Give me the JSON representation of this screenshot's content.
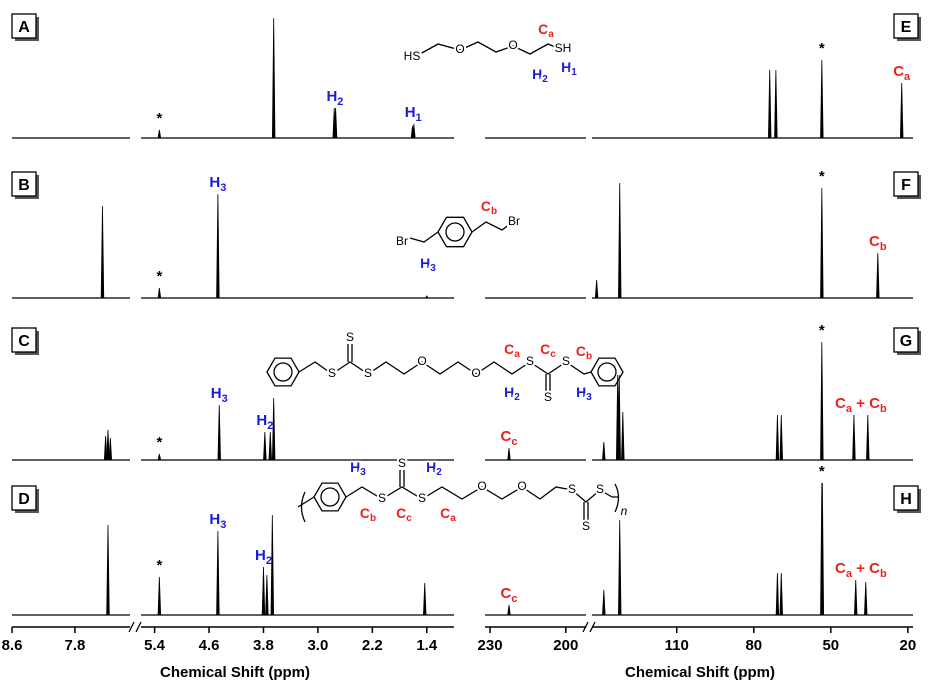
{
  "chart_data": [
    {
      "type": "spectrum",
      "xlabel": "Chemical Shift (ppm)",
      "ylim": [
        0,
        140
      ],
      "color": "#000000",
      "segments": [
        {
          "xlim": [
            8.6,
            7.1
          ],
          "xticks": [
            8.6,
            7.8
          ]
        },
        {
          "xlim": [
            5.6,
            1.0
          ],
          "xticks": [
            5.4,
            4.6,
            3.8,
            {
              "value": 3,
              "label": "3.0"
            },
            2.2,
            1.4
          ]
        }
      ],
      "spectra": [
        {
          "panel": "A",
          "peaks": [
            {
              "x": 5.33,
              "height": 8
            },
            {
              "x": 3.65,
              "height": 120
            },
            {
              "x": 2.76,
              "height": 30
            },
            {
              "x": 2.74,
              "height": 30
            },
            {
              "x": 1.61,
              "height": 12
            },
            {
              "x": 1.59,
              "height": 14
            }
          ],
          "annotations": [
            {
              "x": 5.33,
              "color": "#000000",
              "label": [
                {
                  "text": "*"
                }
              ]
            },
            {
              "x": 2.75,
              "color": "#1c1cd6",
              "label": [
                {
                  "text": "H"
                },
                {
                  "sub": "2"
                }
              ]
            },
            {
              "x": 1.6,
              "color": "#1c1cd6",
              "label": [
                {
                  "text": "H"
                },
                {
                  "sub": "1"
                }
              ]
            }
          ],
          "structure": [
            {
              "color": "#000000",
              "parts": [
                {
                  "text": "HS"
                }
              ]
            },
            {
              "color": "#000000",
              "parts": [
                {
                  "text": "O"
                }
              ]
            },
            {
              "color": "#000000",
              "parts": [
                {
                  "text": "O"
                }
              ]
            },
            {
              "color": "#000000",
              "parts": [
                {
                  "text": "SH"
                }
              ]
            },
            {
              "color": "#e8231e",
              "parts": [
                {
                  "text": "C"
                },
                {
                  "sub": "a"
                }
              ]
            },
            {
              "color": "#1c1cd6",
              "parts": [
                {
                  "text": "H"
                },
                {
                  "sub": "2"
                }
              ]
            },
            {
              "color": "#1c1cd6",
              "parts": [
                {
                  "text": "H"
                },
                {
                  "sub": "1"
                }
              ]
            }
          ]
        },
        {
          "panel": "B",
          "peaks": [
            {
              "x": 7.45,
              "height": 92
            },
            {
              "x": 5.33,
              "height": 10
            },
            {
              "x": 4.47,
              "height": 104
            },
            {
              "x": 1.4,
              "height": 2
            }
          ],
          "annotations": [
            {
              "x": 5.33,
              "color": "#000000",
              "label": [
                {
                  "text": "*"
                }
              ]
            },
            {
              "x": 4.47,
              "color": "#1c1cd6",
              "label": [
                {
                  "text": "H"
                },
                {
                  "sub": "3"
                }
              ]
            }
          ],
          "structure": [
            {
              "color": "#000000",
              "parts": [
                {
                  "text": "Br"
                }
              ]
            },
            {
              "color": "#000000",
              "parts": [
                {
                  "text": "Br"
                }
              ]
            },
            {
              "color": "#e8231e",
              "parts": [
                {
                  "text": "C"
                },
                {
                  "sub": "b"
                }
              ]
            },
            {
              "color": "#1c1cd6",
              "parts": [
                {
                  "text": "H"
                },
                {
                  "sub": "3"
                }
              ]
            }
          ]
        },
        {
          "panel": "C",
          "peaks": [
            {
              "x": 7.41,
              "height": 24
            },
            {
              "x": 7.38,
              "height": 30
            },
            {
              "x": 7.35,
              "height": 22
            },
            {
              "x": 5.33,
              "height": 6
            },
            {
              "x": 4.45,
              "height": 55
            },
            {
              "x": 3.78,
              "height": 28
            },
            {
              "x": 3.7,
              "height": 28
            },
            {
              "x": 3.65,
              "height": 62
            }
          ],
          "annotations": [
            {
              "x": 5.33,
              "color": "#000000",
              "label": [
                {
                  "text": "*"
                }
              ]
            },
            {
              "x": 4.45,
              "color": "#1c1cd6",
              "label": [
                {
                  "text": "H"
                },
                {
                  "sub": "3"
                }
              ]
            },
            {
              "x": 3.78,
              "color": "#1c1cd6",
              "label": [
                {
                  "text": "H"
                },
                {
                  "sub": "2"
                }
              ]
            }
          ],
          "structure": [
            {
              "color": "#000000",
              "parts": [
                {
                  "text": "S"
                }
              ]
            },
            {
              "color": "#000000",
              "parts": [
                {
                  "text": "S"
                }
              ]
            },
            {
              "color": "#000000",
              "parts": [
                {
                  "text": "S"
                }
              ]
            },
            {
              "color": "#000000",
              "parts": [
                {
                  "text": "S"
                }
              ]
            },
            {
              "color": "#000000",
              "parts": [
                {
                  "text": "S"
                }
              ]
            },
            {
              "color": "#000000",
              "parts": [
                {
                  "text": "S"
                }
              ]
            },
            {
              "color": "#000000",
              "parts": [
                {
                  "text": "O"
                }
              ]
            },
            {
              "color": "#000000",
              "parts": [
                {
                  "text": "O"
                }
              ]
            },
            {
              "color": "#e8231e",
              "parts": [
                {
                  "text": "C"
                },
                {
                  "sub": "a"
                }
              ]
            },
            {
              "color": "#e8231e",
              "parts": [
                {
                  "text": "C"
                },
                {
                  "sub": "c"
                }
              ]
            },
            {
              "color": "#e8231e",
              "parts": [
                {
                  "text": "C"
                },
                {
                  "sub": "b"
                }
              ]
            },
            {
              "color": "#1c1cd6",
              "parts": [
                {
                  "text": "H"
                },
                {
                  "sub": "2"
                }
              ]
            },
            {
              "color": "#1c1cd6",
              "parts": [
                {
                  "text": "H"
                },
                {
                  "sub": "3"
                }
              ]
            }
          ]
        },
        {
          "panel": "D",
          "peaks": [
            {
              "x": 7.38,
              "height": 90
            },
            {
              "x": 5.33,
              "height": 38
            },
            {
              "x": 4.47,
              "height": 84
            },
            {
              "x": 3.8,
              "height": 48
            },
            {
              "x": 3.75,
              "height": 40
            },
            {
              "x": 3.67,
              "height": 100
            },
            {
              "x": 1.43,
              "height": 32
            }
          ],
          "annotations": [
            {
              "x": 5.33,
              "color": "#000000",
              "label": [
                {
                  "text": "*"
                }
              ]
            },
            {
              "x": 4.47,
              "color": "#1c1cd6",
              "label": [
                {
                  "text": "H"
                },
                {
                  "sub": "3"
                }
              ]
            },
            {
              "x": 3.8,
              "color": "#1c1cd6",
              "label": [
                {
                  "text": "H"
                },
                {
                  "sub": "2"
                }
              ]
            }
          ],
          "structure": [
            {
              "color": "#000000",
              "parts": [
                {
                  "text": "S"
                }
              ]
            },
            {
              "color": "#000000",
              "parts": [
                {
                  "text": "S"
                }
              ]
            },
            {
              "color": "#000000",
              "parts": [
                {
                  "text": "S"
                }
              ]
            },
            {
              "color": "#000000",
              "parts": [
                {
                  "text": "S"
                }
              ]
            },
            {
              "color": "#000000",
              "parts": [
                {
                  "text": "S"
                }
              ]
            },
            {
              "color": "#000000",
              "parts": [
                {
                  "text": "S"
                }
              ]
            },
            {
              "color": "#000000",
              "parts": [
                {
                  "text": "O"
                }
              ]
            },
            {
              "color": "#000000",
              "parts": [
                {
                  "text": "O"
                }
              ]
            },
            {
              "color": "#e8231e",
              "parts": [
                {
                  "text": "C"
                },
                {
                  "sub": "b"
                }
              ]
            },
            {
              "color": "#1c1cd6",
              "parts": [
                {
                  "text": "H"
                },
                {
                  "sub": "3"
                }
              ]
            },
            {
              "color": "#e8231e",
              "parts": [
                {
                  "text": "C"
                },
                {
                  "sub": "c"
                }
              ]
            },
            {
              "color": "#e8231e",
              "parts": [
                {
                  "text": "C"
                },
                {
                  "sub": "a"
                }
              ]
            },
            {
              "color": "#1c1cd6",
              "parts": [
                {
                  "text": "H"
                },
                {
                  "sub": "2"
                }
              ]
            },
            {
              "color": "#000000",
              "parts": [
                {
                  "text": "n"
                }
              ]
            }
          ]
        }
      ]
    },
    {
      "type": "spectrum",
      "xlabel": "Chemical Shift (ppm)",
      "ylim": [
        0,
        140
      ],
      "color": "#000000",
      "segments": [
        {
          "xlim": [
            232,
            192
          ],
          "xticks": [
            230,
            200
          ]
        },
        {
          "xlim": [
            143,
            18
          ],
          "xticks": [
            110,
            80,
            50,
            20
          ]
        }
      ],
      "spectra": [
        {
          "panel": "E",
          "peaks": [
            {
              "x": 73.8,
              "height": 68
            },
            {
              "x": 71.4,
              "height": 68
            },
            {
              "x": 53.5,
              "height": 78
            },
            {
              "x": 22.4,
              "height": 55
            }
          ],
          "annotations": [
            {
              "x": 53.5,
              "color": "#000000",
              "label": [
                {
                  "text": "*"
                }
              ]
            },
            {
              "x": 22.4,
              "color": "#e8231e",
              "label": [
                {
                  "text": "C"
                },
                {
                  "sub": "a"
                }
              ]
            }
          ]
        },
        {
          "panel": "F",
          "peaks": [
            {
              "x": 141.2,
              "height": 18
            },
            {
              "x": 132.2,
              "height": 115
            },
            {
              "x": 53.5,
              "height": 110
            },
            {
              "x": 31.7,
              "height": 45
            }
          ],
          "annotations": [
            {
              "x": 53.5,
              "color": "#000000",
              "label": [
                {
                  "text": "*"
                }
              ]
            },
            {
              "x": 31.7,
              "color": "#e8231e",
              "label": [
                {
                  "text": "C"
                },
                {
                  "sub": "b"
                }
              ]
            }
          ]
        },
        {
          "panel": "G",
          "peaks": [
            {
              "x": 222.5,
              "height": 12
            },
            {
              "x": 138.4,
              "height": 18
            },
            {
              "x": 133,
              "height": 85
            },
            {
              "x": 132.4,
              "height": 85
            },
            {
              "x": 131,
              "height": 48
            },
            {
              "x": 70.8,
              "height": 45
            },
            {
              "x": 69.3,
              "height": 45
            },
            {
              "x": 53.5,
              "height": 118
            },
            {
              "x": 41,
              "height": 45
            },
            {
              "x": 35.6,
              "height": 45
            }
          ],
          "annotations": [
            {
              "x": 222.5,
              "color": "#e8231e",
              "label": [
                {
                  "text": "C"
                },
                {
                  "sub": "c"
                }
              ]
            },
            {
              "x": 53.5,
              "color": "#000000",
              "label": [
                {
                  "text": "*"
                }
              ]
            },
            {
              "x": 38.3,
              "color": "#e8231e",
              "label": [
                {
                  "text": "C"
                },
                {
                  "sub": "a"
                },
                {
                  "text": " + C"
                },
                {
                  "sub": "b"
                }
              ]
            }
          ]
        },
        {
          "panel": "H",
          "peaks": [
            {
              "x": 222.5,
              "height": 10
            },
            {
              "x": 138.4,
              "height": 25
            },
            {
              "x": 132.2,
              "height": 95
            },
            {
              "x": 70.8,
              "height": 42
            },
            {
              "x": 69.3,
              "height": 42
            },
            {
              "x": 53.5,
              "height": 132
            },
            {
              "x": 53.3,
              "height": 132
            },
            {
              "x": 40.3,
              "height": 35
            },
            {
              "x": 36.4,
              "height": 33
            }
          ],
          "annotations": [
            {
              "x": 222.5,
              "color": "#e8231e",
              "label": [
                {
                  "text": "C"
                },
                {
                  "sub": "c"
                }
              ]
            },
            {
              "x": 53.5,
              "color": "#000000",
              "label": [
                {
                  "text": "*"
                }
              ]
            },
            {
              "x": 38.3,
              "color": "#e8231e",
              "label": [
                {
                  "text": "C"
                },
                {
                  "sub": "a"
                },
                {
                  "text": " + C"
                },
                {
                  "sub": "b"
                }
              ]
            }
          ]
        }
      ]
    }
  ]
}
